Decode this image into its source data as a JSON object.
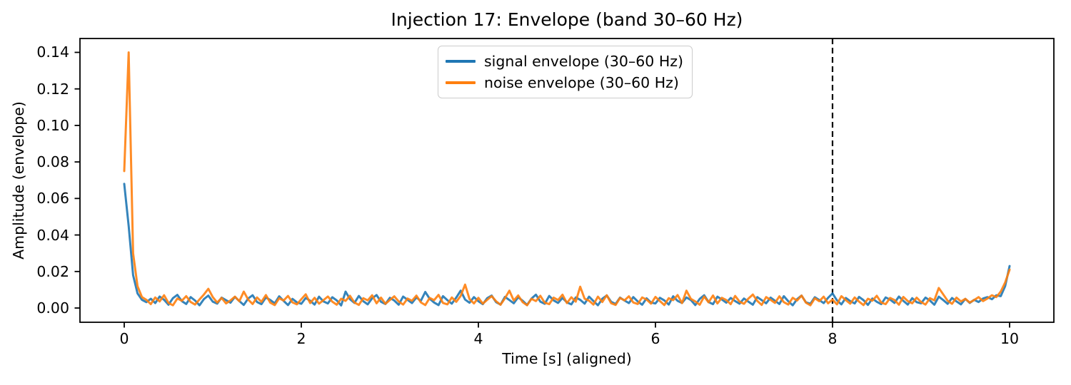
{
  "figure": {
    "title": "Injection 17: Envelope (band 30–60 Hz)",
    "xlabel": "Time [s] (aligned)",
    "ylabel": "Amplitude (envelope)"
  },
  "chart_data": {
    "type": "line",
    "title": "Injection 17: Envelope (band 30–60 Hz)",
    "xlabel": "Time [s] (aligned)",
    "ylabel": "Amplitude (envelope)",
    "xlim": [
      -0.5,
      10.5
    ],
    "ylim": [
      -0.0078,
      0.1476
    ],
    "x_ticks": [
      0,
      2,
      4,
      6,
      8,
      10
    ],
    "y_ticks": [
      0.0,
      0.02,
      0.04,
      0.06,
      0.08,
      0.1,
      0.12,
      0.14
    ],
    "grid": false,
    "legend_position": "upper center",
    "axis_color": "#000000",
    "vline": {
      "x": 8,
      "style": "dashed",
      "color": "#000000"
    },
    "t_start": 0,
    "t_step": 0.05,
    "series": [
      {
        "name": "signal envelope (30–60 Hz)",
        "color": "#1f77b4",
        "values": [
          0.068,
          0.045,
          0.018,
          0.008,
          0.0045,
          0.0032,
          0.0051,
          0.0027,
          0.0063,
          0.0045,
          0.0018,
          0.0054,
          0.0072,
          0.0038,
          0.0022,
          0.006,
          0.0041,
          0.0015,
          0.0049,
          0.0068,
          0.0035,
          0.0024,
          0.0057,
          0.0043,
          0.0029,
          0.0061,
          0.0038,
          0.0017,
          0.0052,
          0.007,
          0.0033,
          0.0021,
          0.0058,
          0.0044,
          0.0026,
          0.0064,
          0.0039,
          0.0016,
          0.005,
          0.0031,
          0.0023,
          0.0055,
          0.004,
          0.0019,
          0.0062,
          0.0036,
          0.0025,
          0.0059,
          0.0042,
          0.0014,
          0.009,
          0.0048,
          0.0028,
          0.0066,
          0.0037,
          0.002,
          0.0053,
          0.0071,
          0.0034,
          0.0022,
          0.0056,
          0.0041,
          0.0018,
          0.0063,
          0.0045,
          0.0027,
          0.0058,
          0.0039,
          0.0088,
          0.0051,
          0.003,
          0.0016,
          0.0065,
          0.0043,
          0.0024,
          0.0057,
          0.0095,
          0.0046,
          0.0029,
          0.006,
          0.0037,
          0.0021,
          0.0054,
          0.0068,
          0.0032,
          0.0019,
          0.0061,
          0.0044,
          0.0026,
          0.0059,
          0.004,
          0.0017,
          0.0052,
          0.0073,
          0.0035,
          0.0023,
          0.0066,
          0.0042,
          0.0028,
          0.0055,
          0.0031,
          0.002,
          0.0058,
          0.0045,
          0.0024,
          0.0062,
          0.0038,
          0.0015,
          0.0051,
          0.0069,
          0.0034,
          0.0022,
          0.0057,
          0.0041,
          0.0027,
          0.006,
          0.0036,
          0.0018,
          0.0053,
          0.003,
          0.0025,
          0.0056,
          0.0042,
          0.0019,
          0.0064,
          0.0039,
          0.0028,
          0.0058,
          0.0044,
          0.0016,
          0.005,
          0.007,
          0.0033,
          0.0021,
          0.0062,
          0.0047,
          0.0029,
          0.0055,
          0.0038,
          0.0024,
          0.0052,
          0.0035,
          0.0018,
          0.006,
          0.0043,
          0.0026,
          0.0057,
          0.004,
          0.0022,
          0.0065,
          0.0037,
          0.0015,
          0.0049,
          0.0068,
          0.0031,
          0.0023,
          0.0059,
          0.0044,
          0.0027,
          0.0056,
          0.008,
          0.0042,
          0.002,
          0.0055,
          0.0038,
          0.0025,
          0.0061,
          0.0043,
          0.0017,
          0.0052,
          0.0034,
          0.0021,
          0.0058,
          0.0046,
          0.0028,
          0.0063,
          0.0039,
          0.0019,
          0.0054,
          0.0032,
          0.0026,
          0.0057,
          0.0041,
          0.0018,
          0.0062,
          0.0044,
          0.0023,
          0.0055,
          0.0036,
          0.002,
          0.005,
          0.0028,
          0.0045,
          0.0033,
          0.0052,
          0.006,
          0.0048,
          0.007,
          0.0065,
          0.012,
          0.023
        ]
      },
      {
        "name": "noise envelope (30–60 Hz)",
        "color": "#ff7f0e",
        "values": [
          0.075,
          0.14,
          0.03,
          0.012,
          0.006,
          0.0045,
          0.0021,
          0.0058,
          0.0036,
          0.007,
          0.0028,
          0.0015,
          0.0052,
          0.004,
          0.0065,
          0.0033,
          0.0019,
          0.0047,
          0.0074,
          0.0105,
          0.006,
          0.003,
          0.0055,
          0.0025,
          0.0042,
          0.0062,
          0.0037,
          0.009,
          0.0046,
          0.0022,
          0.0058,
          0.0034,
          0.0071,
          0.0029,
          0.0016,
          0.0053,
          0.0041,
          0.0066,
          0.0031,
          0.002,
          0.0048,
          0.0075,
          0.0027,
          0.0056,
          0.0024,
          0.0043,
          0.0063,
          0.0035,
          0.0018,
          0.0051,
          0.0039,
          0.0067,
          0.003,
          0.0017,
          0.0054,
          0.0042,
          0.007,
          0.0026,
          0.0057,
          0.0023,
          0.0044,
          0.0064,
          0.0036,
          0.0019,
          0.0052,
          0.004,
          0.0068,
          0.0031,
          0.0016,
          0.0055,
          0.0043,
          0.0072,
          0.0028,
          0.002,
          0.0058,
          0.0034,
          0.0066,
          0.0128,
          0.0049,
          0.0025,
          0.0056,
          0.0024,
          0.0045,
          0.0065,
          0.0037,
          0.0018,
          0.0053,
          0.0095,
          0.0041,
          0.0069,
          0.0032,
          0.0015,
          0.005,
          0.0038,
          0.0067,
          0.0029,
          0.0021,
          0.0057,
          0.0044,
          0.0073,
          0.0027,
          0.0059,
          0.0035,
          0.0117,
          0.0051,
          0.004,
          0.0019,
          0.0062,
          0.0033,
          0.007,
          0.0026,
          0.0017,
          0.0055,
          0.0042,
          0.0064,
          0.003,
          0.0022,
          0.0058,
          0.0046,
          0.0024,
          0.0061,
          0.0038,
          0.0016,
          0.0054,
          0.0043,
          0.0071,
          0.0027,
          0.0095,
          0.005,
          0.0036,
          0.0018,
          0.0063,
          0.0031,
          0.0069,
          0.0025,
          0.0056,
          0.0044,
          0.0021,
          0.0066,
          0.0035,
          0.0023,
          0.0052,
          0.0074,
          0.0039,
          0.0017,
          0.006,
          0.0045,
          0.0028,
          0.0064,
          0.0032,
          0.0019,
          0.0056,
          0.0041,
          0.0068,
          0.0029,
          0.0015,
          0.0053,
          0.0037,
          0.0062,
          0.0026,
          0.0046,
          0.002,
          0.0065,
          0.0043,
          0.0024,
          0.0058,
          0.0035,
          0.0016,
          0.0051,
          0.004,
          0.0067,
          0.003,
          0.0021,
          0.0055,
          0.0044,
          0.0018,
          0.0061,
          0.0038,
          0.0026,
          0.0057,
          0.0033,
          0.0019,
          0.0054,
          0.0042,
          0.011,
          0.0075,
          0.004,
          0.0023,
          0.0057,
          0.0036,
          0.005,
          0.003,
          0.0044,
          0.006,
          0.0038,
          0.0052,
          0.007,
          0.006,
          0.009,
          0.014,
          0.021
        ]
      }
    ]
  }
}
